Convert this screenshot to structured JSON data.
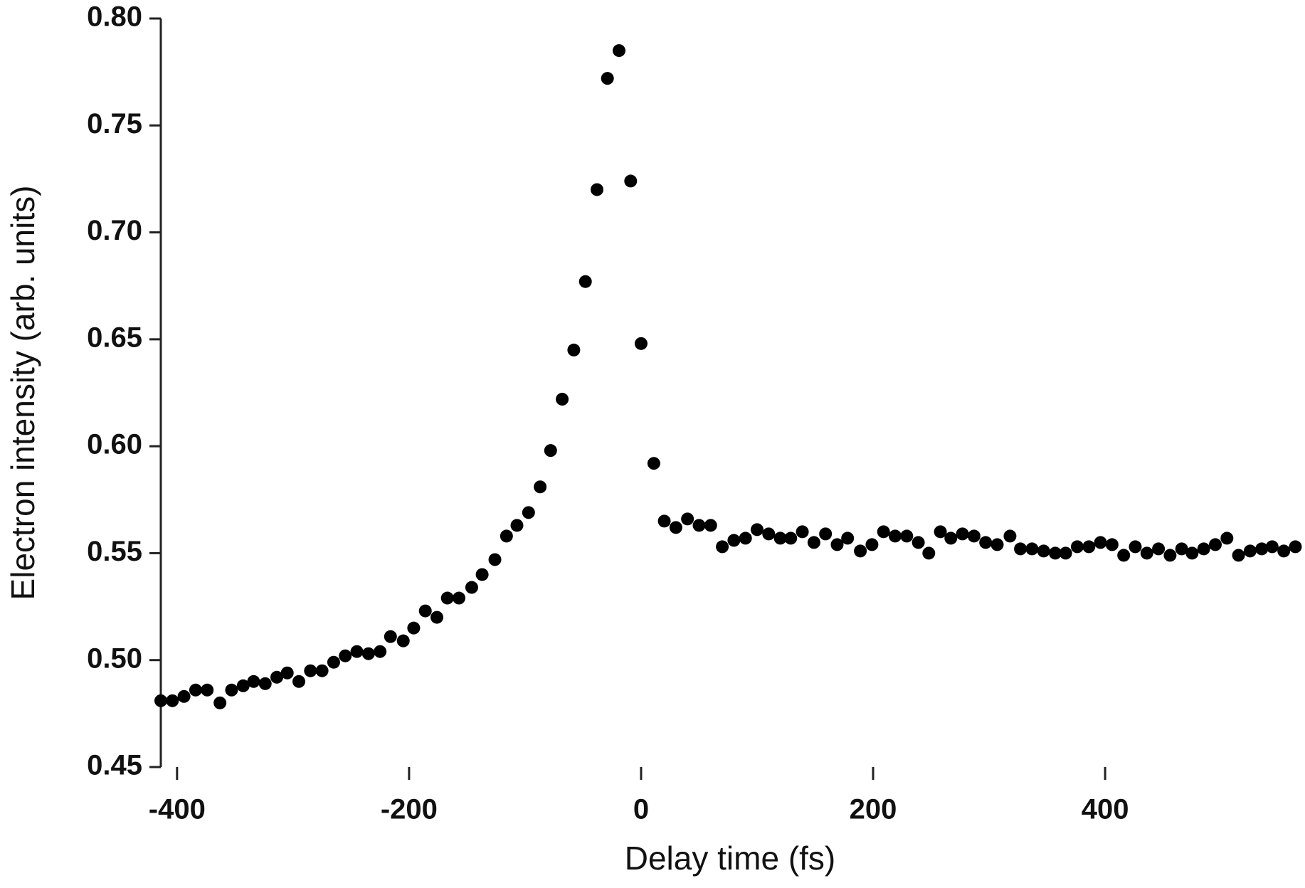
{
  "chart_data": {
    "type": "scatter",
    "x_label": "Delay time (fs)",
    "y_label": "Electron intensity (arb. units)",
    "xlim": [
      -414,
      568
    ],
    "ylim": [
      0.45,
      0.8
    ],
    "xticks": [
      -400,
      -200,
      0,
      200,
      400
    ],
    "yticks": [
      0.45,
      {
        "value": 0.5,
        "label": "0.50"
      },
      0.55,
      {
        "value": 0.6,
        "label": "0.60"
      },
      0.65,
      {
        "value": 0.7,
        "label": "0.70"
      },
      0.75,
      {
        "value": 0.8,
        "label": "0.80"
      }
    ],
    "color": "#000000",
    "x": [
      -414,
      -404,
      -394,
      -384,
      -374,
      -363,
      -353,
      -343,
      -334,
      -324,
      -314,
      -305,
      -295,
      -285,
      -275,
      -265,
      -255,
      -245,
      -235,
      -225,
      -216,
      -205,
      -196,
      -186,
      -176,
      -167,
      -157,
      -146,
      -137,
      -126,
      -116,
      -107,
      -97,
      -87,
      -78,
      -68,
      -58,
      -48,
      -38,
      -29,
      -19,
      -9,
      0,
      11,
      20,
      30,
      40,
      50,
      60,
      70,
      80,
      90,
      100,
      110,
      120,
      129,
      139,
      149,
      159,
      169,
      178,
      189,
      199,
      209,
      219,
      229,
      239,
      248,
      258,
      267,
      277,
      287,
      297,
      307,
      318,
      327,
      337,
      347,
      357,
      366,
      376,
      386,
      396,
      406,
      416,
      426,
      436,
      446,
      456,
      466,
      475,
      485,
      495,
      505,
      515,
      525,
      535,
      544,
      554,
      564
    ],
    "values": [
      0.481,
      0.481,
      0.483,
      0.486,
      0.486,
      0.48,
      0.486,
      0.488,
      0.49,
      0.489,
      0.492,
      0.494,
      0.49,
      0.495,
      0.495,
      0.499,
      0.502,
      0.504,
      0.503,
      0.504,
      0.511,
      0.509,
      0.515,
      0.523,
      0.52,
      0.529,
      0.529,
      0.534,
      0.54,
      0.547,
      0.558,
      0.563,
      0.569,
      0.581,
      0.598,
      0.622,
      0.645,
      0.677,
      0.72,
      0.772,
      0.785,
      0.724,
      0.648,
      0.592,
      0.565,
      0.562,
      0.566,
      0.563,
      0.563,
      0.553,
      0.556,
      0.557,
      0.561,
      0.559,
      0.557,
      0.557,
      0.56,
      0.555,
      0.559,
      0.554,
      0.557,
      0.551,
      0.554,
      0.56,
      0.558,
      0.558,
      0.555,
      0.55,
      0.56,
      0.557,
      0.559,
      0.558,
      0.555,
      0.554,
      0.558,
      0.552,
      0.552,
      0.551,
      0.55,
      0.55,
      0.553,
      0.553,
      0.555,
      0.554,
      0.549,
      0.553,
      0.55,
      0.552,
      0.549,
      0.552,
      0.55,
      0.552,
      0.554,
      0.557,
      0.549,
      0.551,
      0.552,
      0.553,
      0.551,
      0.553
    ]
  }
}
